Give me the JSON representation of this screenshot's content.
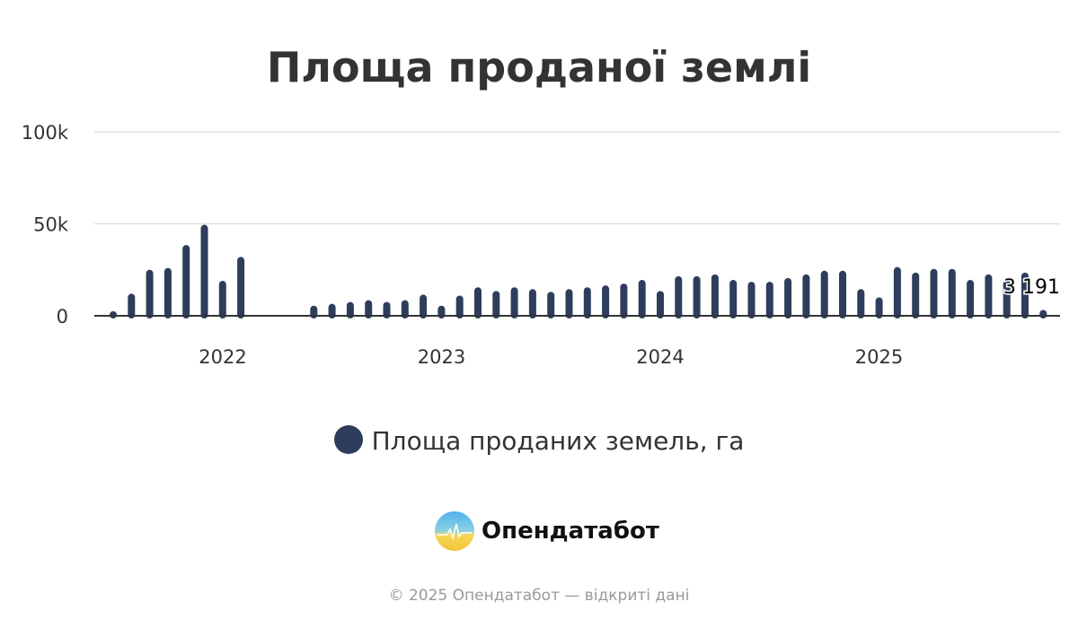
{
  "chart_data": {
    "type": "bar",
    "title": "Площа проданої землі",
    "series": [
      {
        "name": "Площа проданих земель, га",
        "color": "#2e3d5c"
      }
    ],
    "groups": [
      {
        "start": "2021-07",
        "values": [
          2500,
          12000,
          25000,
          26000,
          38500,
          49500,
          19000,
          32000
        ]
      },
      {
        "start": "2022-06",
        "values": [
          5500,
          6500,
          7500,
          8500,
          7500,
          8500,
          11500,
          5500,
          11000,
          15500,
          13500,
          15500,
          14500,
          13000,
          14500,
          15500,
          16500,
          17500,
          19500,
          13500,
          21500,
          21500,
          22500,
          19500,
          18500,
          18500,
          20500,
          22500,
          24500,
          24500,
          14500,
          10000,
          26500,
          23500,
          25500,
          25500,
          19500,
          22500,
          19500,
          23500,
          3191
        ]
      }
    ],
    "ylim": [
      0,
      100000
    ],
    "y_ticks": [
      "0",
      "50k",
      "100k"
    ],
    "x_ticks": [
      "2022",
      "2023",
      "2024",
      "2025"
    ],
    "data_label": "3 191",
    "grid": true,
    "legend_position": "bottom"
  },
  "brand": "Опендатабот",
  "footer": "© 2025 Опендатабот — відкриті дані"
}
